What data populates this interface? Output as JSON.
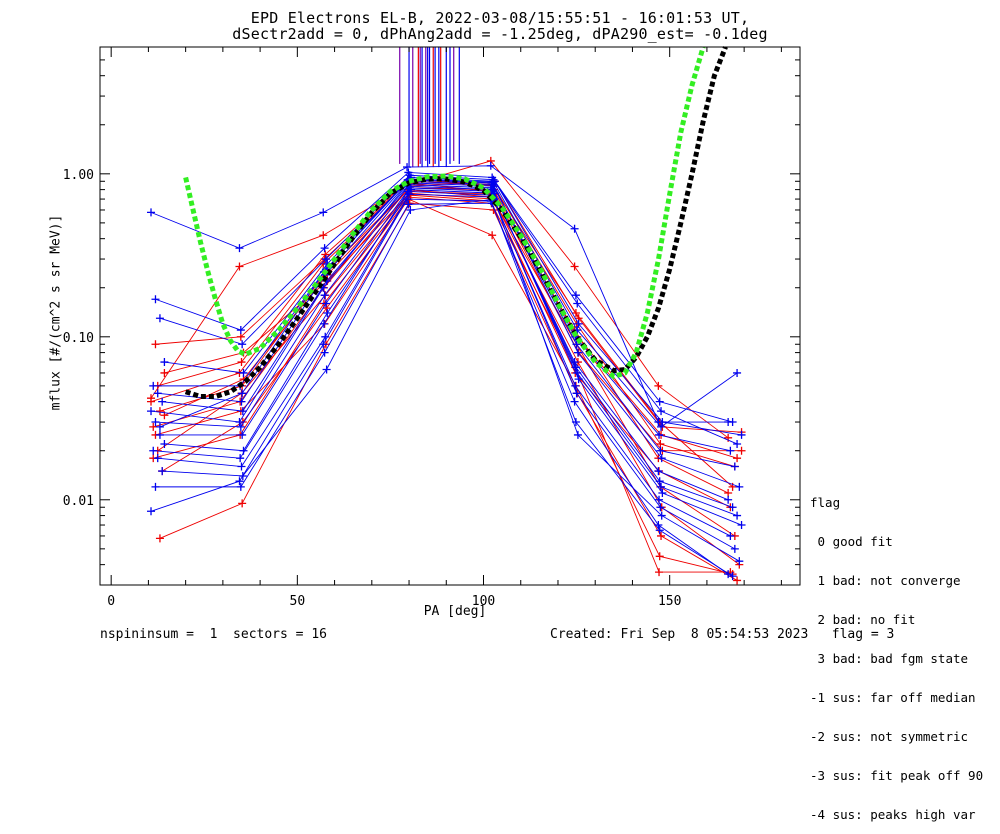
{
  "title_line1": "EPD Electrons EL-B, 2022-03-08/15:55:51 - 16:01:53 UT,",
  "title_line2": "dSectr2add = 0, dPhAng2add = -1.25deg, dPA290_est=  -0.1deg",
  "footer_left": "nspininsum =  1  sectors = 16",
  "footer_right": "Created: Fri Sep  8 05:54:53 2023   flag = 3",
  "legend": {
    "title": "flag",
    "items": [
      " 0 good fit",
      " 1 bad: not converge",
      " 2 bad: no fit",
      " 3 bad: bad fgm state",
      "-1 sus: far off median",
      "-2 sus: not symmetric",
      "-3 sus: fit peak off 90",
      "-4 sus: peaks high var"
    ]
  },
  "colors": {
    "red": "#ee0000",
    "blue": "#0000ee",
    "green_fit": "#33ee22",
    "black_fit": "#000000",
    "purple_lines": "#7700aa"
  },
  "chart_data": {
    "type": "line",
    "xlabel": "PA [deg]",
    "ylabel": "mflux [#/(cm^2 s sr MeV)]",
    "xlim": [
      -3,
      185
    ],
    "ylim": [
      0.003,
      6
    ],
    "yscale": "log",
    "xticks": [
      0,
      50,
      100,
      150
    ],
    "xtick_labels": [
      "0",
      "50",
      "100",
      "150"
    ],
    "yticks": [
      0.01,
      0.1,
      1.0
    ],
    "ytick_labels": [
      "0.01",
      "0.10",
      "1.00"
    ],
    "pa_bins": [
      12.5,
      35,
      57.5,
      80,
      102.5,
      125,
      147.5,
      167.5
    ],
    "series_red": [
      [
        0.042,
        0.27,
        0.42,
        0.85,
        1.2,
        0.27,
        0.05,
        0.024
      ],
      [
        0.09,
        0.1,
        0.3,
        0.9,
        0.85,
        0.14,
        0.03,
        0.012
      ],
      [
        0.035,
        0.05,
        0.25,
        0.82,
        0.8,
        0.1,
        0.025,
        0.018
      ],
      [
        0.06,
        0.08,
        0.22,
        0.78,
        0.75,
        0.08,
        0.02,
        0.02
      ],
      [
        0.028,
        0.04,
        0.2,
        0.8,
        0.72,
        0.06,
        0.015,
        0.009
      ],
      [
        0.02,
        0.045,
        0.18,
        0.76,
        0.7,
        0.09,
        0.012,
        0.006
      ],
      [
        0.015,
        0.03,
        0.15,
        0.74,
        0.68,
        0.07,
        0.009,
        0.004
      ],
      [
        0.04,
        0.06,
        0.28,
        0.88,
        0.78,
        0.11,
        0.018,
        0.011
      ],
      [
        0.025,
        0.035,
        0.12,
        0.7,
        0.42,
        0.05,
        0.0045,
        0.0035
      ],
      [
        0.0058,
        0.0095,
        0.09,
        0.66,
        0.6,
        0.045,
        0.006,
        0.0032
      ],
      [
        0.033,
        0.055,
        0.24,
        0.84,
        0.9,
        0.13,
        0.028,
        0.026
      ],
      [
        0.018,
        0.025,
        0.16,
        0.72,
        0.66,
        0.065,
        0.0036,
        0.0036
      ],
      [
        0.05,
        0.07,
        0.32,
        0.92,
        0.86,
        0.12,
        0.022,
        0.016
      ]
    ],
    "series_blue": [
      [
        0.58,
        0.35,
        0.58,
        1.1,
        1.12,
        0.46,
        0.03,
        0.03
      ],
      [
        0.17,
        0.11,
        0.35,
        1.02,
        0.95,
        0.18,
        0.04,
        0.03
      ],
      [
        0.13,
        0.09,
        0.3,
        0.98,
        0.92,
        0.16,
        0.035,
        0.022
      ],
      [
        0.07,
        0.06,
        0.28,
        0.95,
        0.9,
        0.12,
        0.03,
        0.025
      ],
      [
        0.05,
        0.05,
        0.25,
        0.92,
        0.88,
        0.1,
        0.025,
        0.02
      ],
      [
        0.045,
        0.04,
        0.24,
        0.9,
        0.86,
        0.09,
        0.02,
        0.016
      ],
      [
        0.04,
        0.035,
        0.22,
        0.88,
        0.84,
        0.08,
        0.018,
        0.012
      ],
      [
        0.035,
        0.03,
        0.2,
        0.86,
        0.82,
        0.07,
        0.015,
        0.01
      ],
      [
        0.03,
        0.028,
        0.18,
        0.84,
        0.8,
        0.065,
        0.013,
        0.009
      ],
      [
        0.025,
        0.025,
        0.16,
        0.82,
        0.78,
        0.06,
        0.012,
        0.008
      ],
      [
        0.022,
        0.02,
        0.14,
        0.8,
        0.76,
        0.055,
        0.011,
        0.007
      ],
      [
        0.02,
        0.018,
        0.12,
        0.78,
        0.74,
        0.05,
        0.01,
        0.006
      ],
      [
        0.018,
        0.016,
        0.1,
        0.75,
        0.72,
        0.045,
        0.009,
        0.005
      ],
      [
        0.015,
        0.014,
        0.063,
        0.6,
        0.7,
        0.025,
        0.008,
        0.0042
      ],
      [
        0.0085,
        0.013,
        0.09,
        0.7,
        0.68,
        0.04,
        0.007,
        0.0035
      ],
      [
        0.012,
        0.012,
        0.08,
        0.65,
        0.66,
        0.03,
        0.0065,
        0.0034
      ],
      [
        0.028,
        0.045,
        0.26,
        0.93,
        0.89,
        0.11,
        0.028,
        0.06
      ]
    ],
    "fit_green": {
      "x": [
        20,
        22,
        24,
        26,
        28,
        30,
        32,
        34,
        36,
        40,
        45,
        50,
        55,
        60,
        65,
        70,
        75,
        80,
        85,
        90,
        95,
        100,
        105,
        110,
        115,
        120,
        125,
        130,
        135,
        138,
        141,
        144,
        147,
        150,
        153,
        156,
        159
      ],
      "y": [
        0.95,
        0.6,
        0.38,
        0.25,
        0.17,
        0.12,
        0.095,
        0.082,
        0.078,
        0.085,
        0.11,
        0.15,
        0.21,
        0.3,
        0.43,
        0.6,
        0.78,
        0.9,
        0.96,
        0.97,
        0.93,
        0.82,
        0.62,
        0.42,
        0.27,
        0.16,
        0.1,
        0.07,
        0.057,
        0.06,
        0.08,
        0.14,
        0.3,
        0.75,
        1.8,
        3.5,
        6.0
      ]
    },
    "fit_black": {
      "x": [
        20,
        24,
        28,
        32,
        36,
        40,
        45,
        50,
        55,
        60,
        65,
        70,
        75,
        80,
        85,
        90,
        95,
        100,
        105,
        110,
        115,
        120,
        125,
        130,
        135,
        138,
        141,
        144,
        147,
        150,
        153,
        156,
        159,
        162,
        165
      ],
      "y": [
        0.046,
        0.043,
        0.043,
        0.046,
        0.053,
        0.065,
        0.09,
        0.13,
        0.19,
        0.28,
        0.41,
        0.58,
        0.76,
        0.88,
        0.93,
        0.93,
        0.89,
        0.79,
        0.6,
        0.41,
        0.26,
        0.16,
        0.1,
        0.072,
        0.062,
        0.063,
        0.075,
        0.1,
        0.15,
        0.26,
        0.5,
        1.0,
        2.1,
        4.0,
        6.0
      ]
    },
    "vertical_lines": {
      "x": [
        76,
        77.5,
        79,
        80,
        81,
        82,
        82.5,
        83,
        83.5,
        84,
        84.5,
        85,
        85.5,
        86,
        86.5,
        87,
        87.5,
        88,
        88.5,
        89,
        90,
        91,
        92,
        93.5
      ],
      "y_min": [
        6,
        1.15,
        6,
        1.1,
        1.1,
        6,
        1.1,
        1.15,
        1.1,
        6,
        1.2,
        1.1,
        1.15,
        6,
        1.1,
        1.15,
        6,
        1.1,
        1.2,
        6,
        1.1,
        1.15,
        1.2,
        1.15
      ]
    }
  }
}
